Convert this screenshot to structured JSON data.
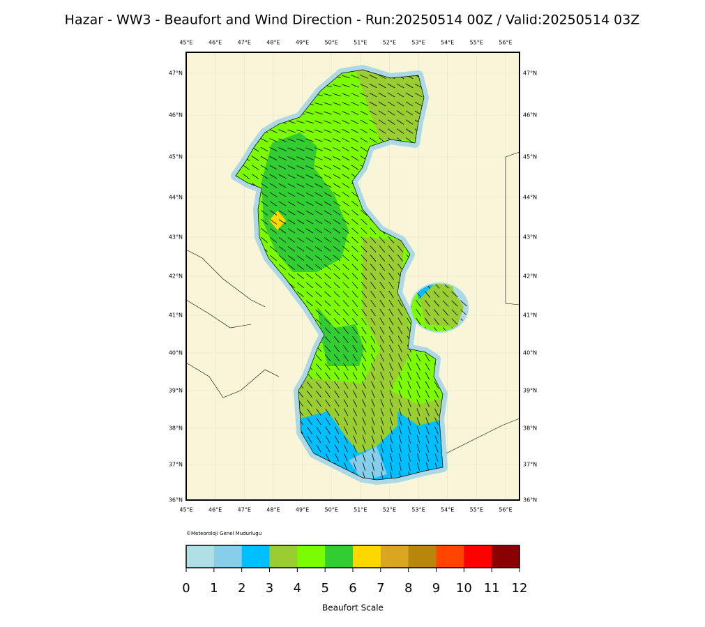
{
  "title": "Hazar - WW3 - Beaufort and Wind Direction - Run:20250514 00Z / Valid:20250514 03Z",
  "map": {
    "lon_labels": [
      "45°E",
      "46°E",
      "47°E",
      "48°E",
      "49°E",
      "50°E",
      "51°E",
      "52°E",
      "53°E",
      "54°E",
      "55°E",
      "56°E"
    ],
    "lat_labels": [
      "47°N",
      "46°N",
      "45°N",
      "44°N",
      "43°N",
      "42°N",
      "41°N",
      "40°N",
      "39°N",
      "38°N",
      "37°N",
      "36°N"
    ],
    "credit": "©Meteoroloji Genel Mudurlugu"
  },
  "colorbar": {
    "ticks": [
      0,
      1,
      2,
      3,
      4,
      5,
      6,
      7,
      8,
      9,
      10,
      11,
      12
    ],
    "colors": [
      "#b0e0e6",
      "#87ceeb",
      "#00bfff",
      "#9acd32",
      "#7cfc00",
      "#32cd32",
      "#ffd700",
      "#daa520",
      "#b8860b",
      "#ff4500",
      "#ff0000",
      "#8b0000"
    ],
    "label": "Beaufort Scale"
  }
}
